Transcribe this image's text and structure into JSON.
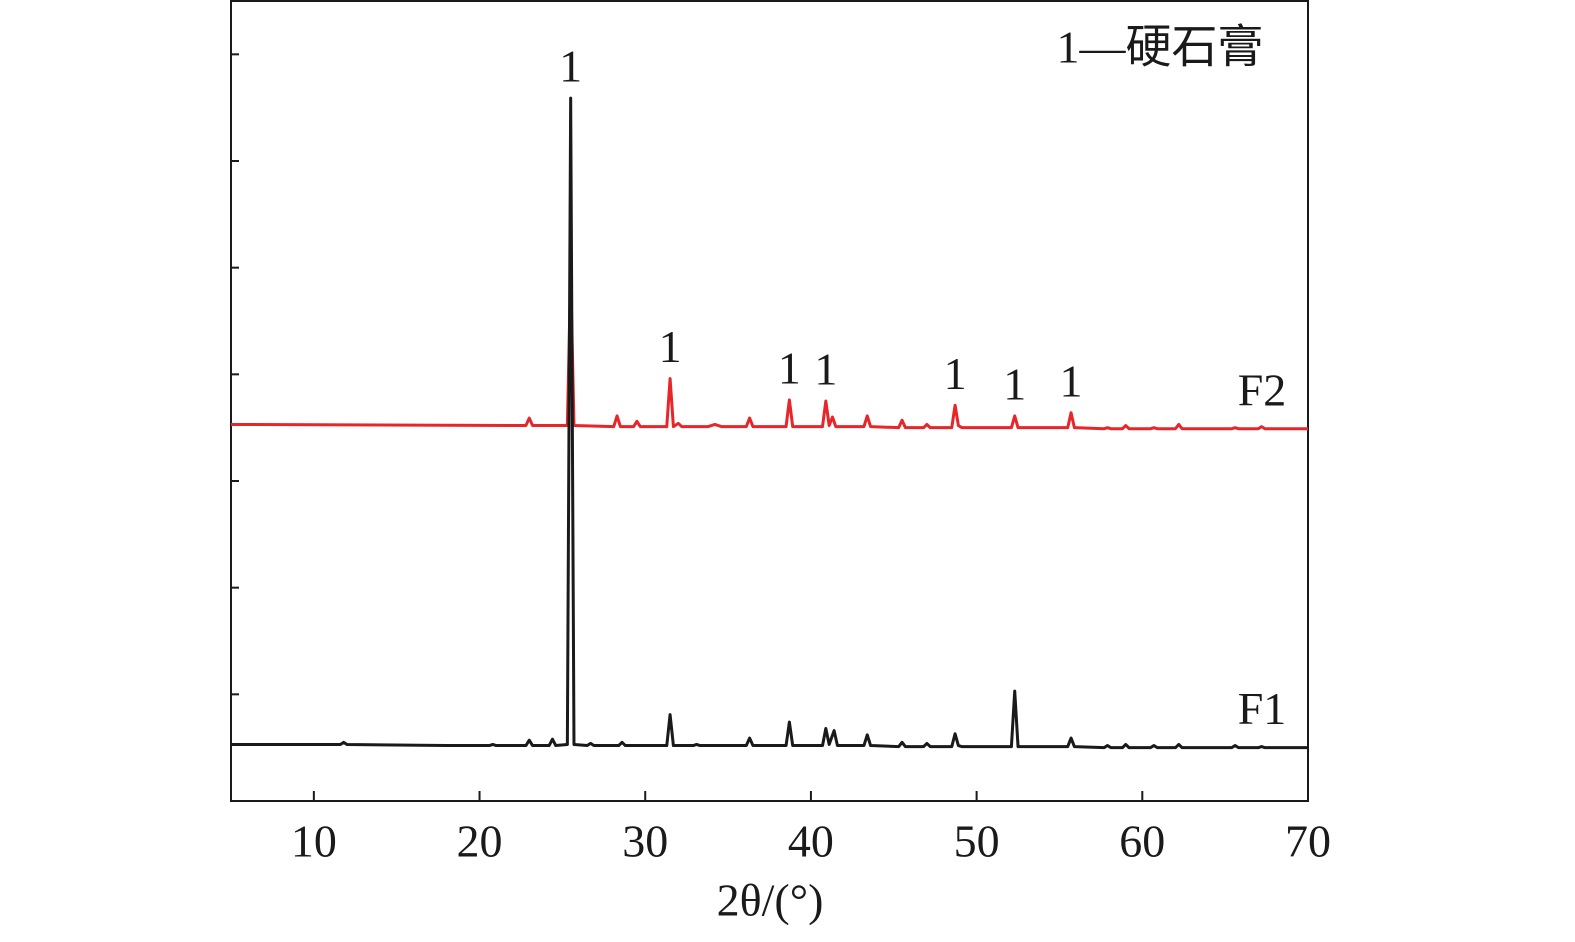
{
  "chart_data": {
    "type": "line",
    "x_label": "2θ/(°)",
    "legend_note": "1—硬石膏",
    "xlim": [
      5,
      70
    ],
    "xticks": [
      10,
      20,
      30,
      40,
      50,
      60,
      70
    ],
    "ylim": [
      0,
      7.5
    ],
    "yticks": [
      1,
      2,
      3,
      4,
      5,
      6,
      7
    ],
    "series": [
      {
        "name": "F1",
        "color": "#1a1a1a",
        "x": [
          5,
          11.6,
          11.8,
          12.0,
          18,
          20.6,
          20.8,
          21.0,
          22.8,
          23.0,
          23.2,
          24.2,
          24.4,
          24.6,
          25.3,
          25.5,
          25.7,
          26.5,
          26.7,
          26.9,
          28.4,
          28.6,
          28.8,
          31.3,
          31.5,
          31.7,
          32.9,
          33.1,
          33.3,
          36.1,
          36.3,
          36.5,
          38.5,
          38.7,
          38.9,
          40.7,
          40.9,
          41.1,
          41.4,
          41.6,
          43.2,
          43.4,
          43.6,
          45.3,
          45.5,
          45.7,
          46.8,
          47.0,
          47.2,
          48.5,
          48.7,
          48.9,
          49.1,
          52.1,
          52.3,
          52.5,
          55.5,
          55.7,
          55.9,
          57.7,
          57.9,
          58.1,
          58.8,
          59.0,
          59.2,
          60.5,
          60.7,
          60.9,
          62,
          62.2,
          62.4,
          65.4,
          65.6,
          65.8,
          67,
          67.2,
          67.4,
          70
        ],
        "values": [
          0.53,
          0.53,
          0.55,
          0.53,
          0.52,
          0.52,
          0.53,
          0.52,
          0.52,
          0.57,
          0.52,
          0.52,
          0.58,
          0.52,
          0.53,
          6.59,
          0.53,
          0.52,
          0.54,
          0.52,
          0.52,
          0.55,
          0.52,
          0.52,
          0.81,
          0.52,
          0.52,
          0.53,
          0.52,
          0.52,
          0.59,
          0.52,
          0.52,
          0.74,
          0.52,
          0.52,
          0.68,
          0.53,
          0.66,
          0.52,
          0.52,
          0.62,
          0.52,
          0.51,
          0.55,
          0.51,
          0.51,
          0.54,
          0.51,
          0.51,
          0.63,
          0.52,
          0.51,
          0.51,
          1.03,
          0.51,
          0.51,
          0.59,
          0.51,
          0.5,
          0.52,
          0.5,
          0.5,
          0.53,
          0.5,
          0.5,
          0.52,
          0.5,
          0.5,
          0.53,
          0.5,
          0.5,
          0.52,
          0.5,
          0.5,
          0.51,
          0.5,
          0.5
        ]
      },
      {
        "name": "F2",
        "color": "#e8262a",
        "x": [
          5,
          22.8,
          23.0,
          23.2,
          25.3,
          25.5,
          25.7,
          28.1,
          28.3,
          28.5,
          29.3,
          29.5,
          29.7,
          31.3,
          31.5,
          31.7,
          32.0,
          32.2,
          33.8,
          34.2,
          34.6,
          36.1,
          36.3,
          36.5,
          38.5,
          38.7,
          38.9,
          40.7,
          40.9,
          41.1,
          41.3,
          41.5,
          43.2,
          43.4,
          43.6,
          45.3,
          45.5,
          45.7,
          46.8,
          47.0,
          47.2,
          48.5,
          48.7,
          48.9,
          49.1,
          52.1,
          52.3,
          52.5,
          55.5,
          55.7,
          55.9,
          57.7,
          57.9,
          58.1,
          58.8,
          59.0,
          59.2,
          60.5,
          60.7,
          60.9,
          62,
          62.2,
          62.4,
          65.4,
          65.6,
          65.8,
          67,
          67.2,
          67.4,
          70
        ],
        "values": [
          3.53,
          3.52,
          3.59,
          3.52,
          3.52,
          4.95,
          3.52,
          3.51,
          3.61,
          3.51,
          3.51,
          3.56,
          3.51,
          3.51,
          3.96,
          3.51,
          3.54,
          3.51,
          3.51,
          3.53,
          3.51,
          3.51,
          3.59,
          3.51,
          3.51,
          3.76,
          3.51,
          3.51,
          3.75,
          3.52,
          3.6,
          3.51,
          3.51,
          3.61,
          3.51,
          3.5,
          3.57,
          3.5,
          3.5,
          3.53,
          3.5,
          3.5,
          3.71,
          3.52,
          3.5,
          3.5,
          3.61,
          3.5,
          3.5,
          3.64,
          3.5,
          3.49,
          3.5,
          3.49,
          3.49,
          3.52,
          3.49,
          3.49,
          3.5,
          3.49,
          3.49,
          3.53,
          3.49,
          3.49,
          3.5,
          3.49,
          3.49,
          3.51,
          3.49,
          3.49
        ]
      }
    ],
    "annotations": [
      {
        "text": "1",
        "x": 25.5
      },
      {
        "text": "1",
        "x": 31.5
      },
      {
        "text": "1",
        "x": 38.7
      },
      {
        "text": "1",
        "x": 40.9
      },
      {
        "text": "1",
        "x": 48.7
      },
      {
        "text": "1",
        "x": 52.3
      },
      {
        "text": "1",
        "x": 55.7
      }
    ]
  }
}
